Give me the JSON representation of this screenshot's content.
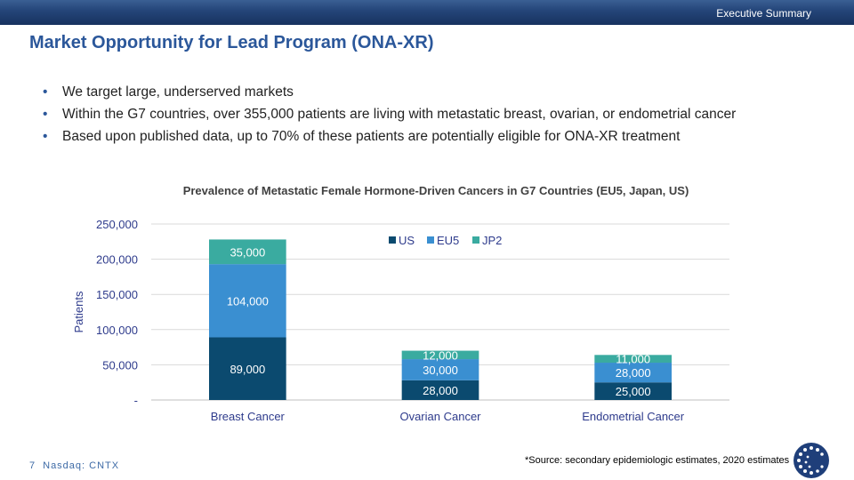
{
  "header": {
    "section_label": "Executive Summary"
  },
  "title": "Market Opportunity for Lead Program (ONA-XR)",
  "bullets": [
    "We target large, underserved markets",
    "Within the G7 countries, over 355,000 patients are living with metastatic breast, ovarian, or endometrial cancer",
    "Based upon published data, up to 70% of these patients are potentially eligible for ONA-XR treatment"
  ],
  "chart_data": {
    "type": "bar",
    "stacked": true,
    "title": "Prevalence of Metastatic Female Hormone-Driven Cancers in G7 Countries (EU5, Japan, US)",
    "xlabel": "",
    "ylabel": "Patients",
    "ylim": [
      0,
      250000
    ],
    "yticks": [
      0,
      50000,
      100000,
      150000,
      200000,
      250000
    ],
    "ytick_labels": [
      "-",
      "50,000",
      "100,000",
      "150,000",
      "200,000",
      "250,000"
    ],
    "grid": true,
    "legend_position": "top-center",
    "categories": [
      "Breast Cancer",
      "Ovarian Cancer",
      "Endometrial Cancer"
    ],
    "series": [
      {
        "name": "US",
        "color": "#0b4a6f",
        "values": [
          89000,
          28000,
          25000
        ],
        "labels": [
          "89,000",
          "28,000",
          "25,000"
        ]
      },
      {
        "name": "EU5",
        "color": "#3a8fd1",
        "values": [
          104000,
          30000,
          28000
        ],
        "labels": [
          "104,000",
          "30,000",
          "28,000"
        ]
      },
      {
        "name": "JP2",
        "color": "#3aaba0",
        "values": [
          35000,
          12000,
          11000
        ],
        "labels": [
          "35,000",
          "12,000",
          "11,000"
        ]
      }
    ]
  },
  "source_note": "*Source: secondary epidemiologic estimates, 2020 estimates",
  "footer": {
    "page_number": "7",
    "ticker": "Nasdaq: CNTX"
  }
}
